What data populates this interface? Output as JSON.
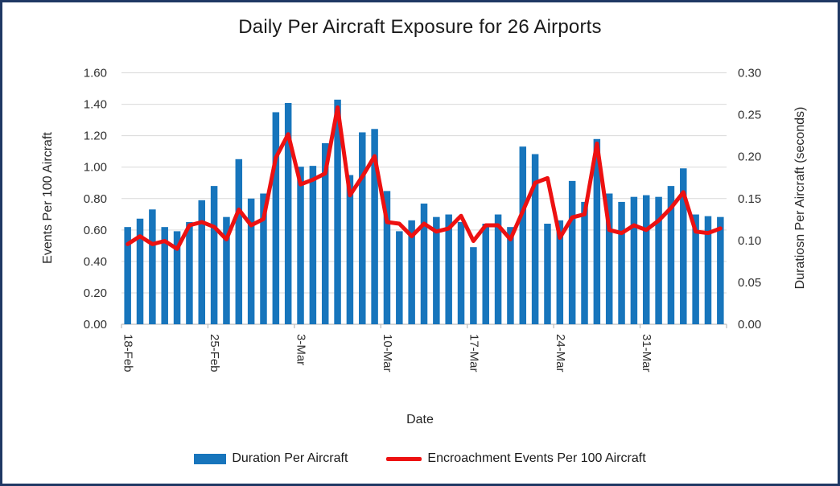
{
  "title": "Daily Per Aircraft Exposure for 26 Airports",
  "colors": {
    "bar": "#1775BC",
    "line": "#ED1111",
    "frame": "#1F3864",
    "gridline": "#D9D9D9",
    "axis_line": "#BFBFBF",
    "tick_text": "#303030"
  },
  "x_axis": {
    "title": "Date",
    "tick_labels": [
      "18-Feb",
      "25-Feb",
      "3-Mar",
      "10-Mar",
      "17-Mar",
      "24-Mar",
      "31-Mar"
    ]
  },
  "left_axis": {
    "title": "Events Per 100 Aircraft",
    "tick_labels": [
      "0.00",
      "0.20",
      "0.40",
      "0.60",
      "0.80",
      "1.00",
      "1.20",
      "1.40",
      "1.60"
    ]
  },
  "right_axis": {
    "title": "Duratiosn Per Aircraft (seconds)",
    "tick_labels": [
      "0.00",
      "0.05",
      "0.10",
      "0.15",
      "0.20",
      "0.25",
      "0.30"
    ]
  },
  "legend": {
    "items": [
      {
        "label": "Duration Per Aircraft",
        "type": "bar"
      },
      {
        "label": "Encroachment Events Per 100 Aircraft",
        "type": "line"
      }
    ]
  },
  "chart_data": {
    "type": "combo",
    "title": "Daily Per Aircraft Exposure for 26 Airports",
    "xlabel": "Date",
    "ylabel_left": "Events Per 100 Aircraft",
    "ylabel_right": "Duratiosn Per Aircraft (seconds)",
    "left_ylim": [
      0,
      1.6
    ],
    "right_ylim": [
      0,
      0.3
    ],
    "grid": "horizontal",
    "legend_position": "bottom",
    "x": [
      "18-Feb",
      "19-Feb",
      "20-Feb",
      "21-Feb",
      "22-Feb",
      "23-Feb",
      "24-Feb",
      "25-Feb",
      "26-Feb",
      "27-Feb",
      "28-Feb",
      "29-Feb",
      "1-Mar",
      "2-Mar",
      "3-Mar",
      "4-Mar",
      "5-Mar",
      "6-Mar",
      "7-Mar",
      "8-Mar",
      "9-Mar",
      "10-Mar",
      "11-Mar",
      "12-Mar",
      "13-Mar",
      "14-Mar",
      "15-Mar",
      "16-Mar",
      "17-Mar",
      "18-Mar",
      "19-Mar",
      "20-Mar",
      "21-Mar",
      "22-Mar",
      "23-Mar",
      "24-Mar",
      "25-Mar",
      "26-Mar",
      "27-Mar",
      "28-Mar",
      "29-Mar",
      "30-Mar",
      "31-Mar",
      "1-Apr",
      "2-Apr",
      "3-Apr",
      "4-Apr",
      "5-Apr",
      "6-Apr"
    ],
    "series": [
      {
        "name": "Duration Per Aircraft",
        "type": "bar",
        "axis": "right",
        "values": [
          0.116,
          0.126,
          0.137,
          0.116,
          0.111,
          0.122,
          0.148,
          0.165,
          0.128,
          0.197,
          0.15,
          0.156,
          0.253,
          0.264,
          0.188,
          0.189,
          0.216,
          0.268,
          0.178,
          0.229,
          0.233,
          0.159,
          0.111,
          0.124,
          0.144,
          0.128,
          0.131,
          0.122,
          0.092,
          0.12,
          0.131,
          0.116,
          0.212,
          0.203,
          0.12,
          0.124,
          0.171,
          0.146,
          0.221,
          0.156,
          0.146,
          0.152,
          0.154,
          0.152,
          0.165,
          0.186,
          0.131,
          0.129,
          0.128
        ]
      },
      {
        "name": "Encroachment Events Per 100 Aircraft",
        "type": "line",
        "axis": "left",
        "values": [
          0.51,
          0.56,
          0.51,
          0.53,
          0.48,
          0.63,
          0.65,
          0.62,
          0.54,
          0.73,
          0.63,
          0.67,
          1.06,
          1.21,
          0.89,
          0.92,
          0.96,
          1.38,
          0.82,
          0.94,
          1.07,
          0.65,
          0.64,
          0.56,
          0.64,
          0.59,
          0.61,
          0.69,
          0.53,
          0.63,
          0.63,
          0.54,
          0.72,
          0.9,
          0.93,
          0.55,
          0.68,
          0.7,
          1.15,
          0.6,
          0.58,
          0.63,
          0.6,
          0.66,
          0.74,
          0.84,
          0.59,
          0.58,
          0.61
        ]
      }
    ]
  }
}
